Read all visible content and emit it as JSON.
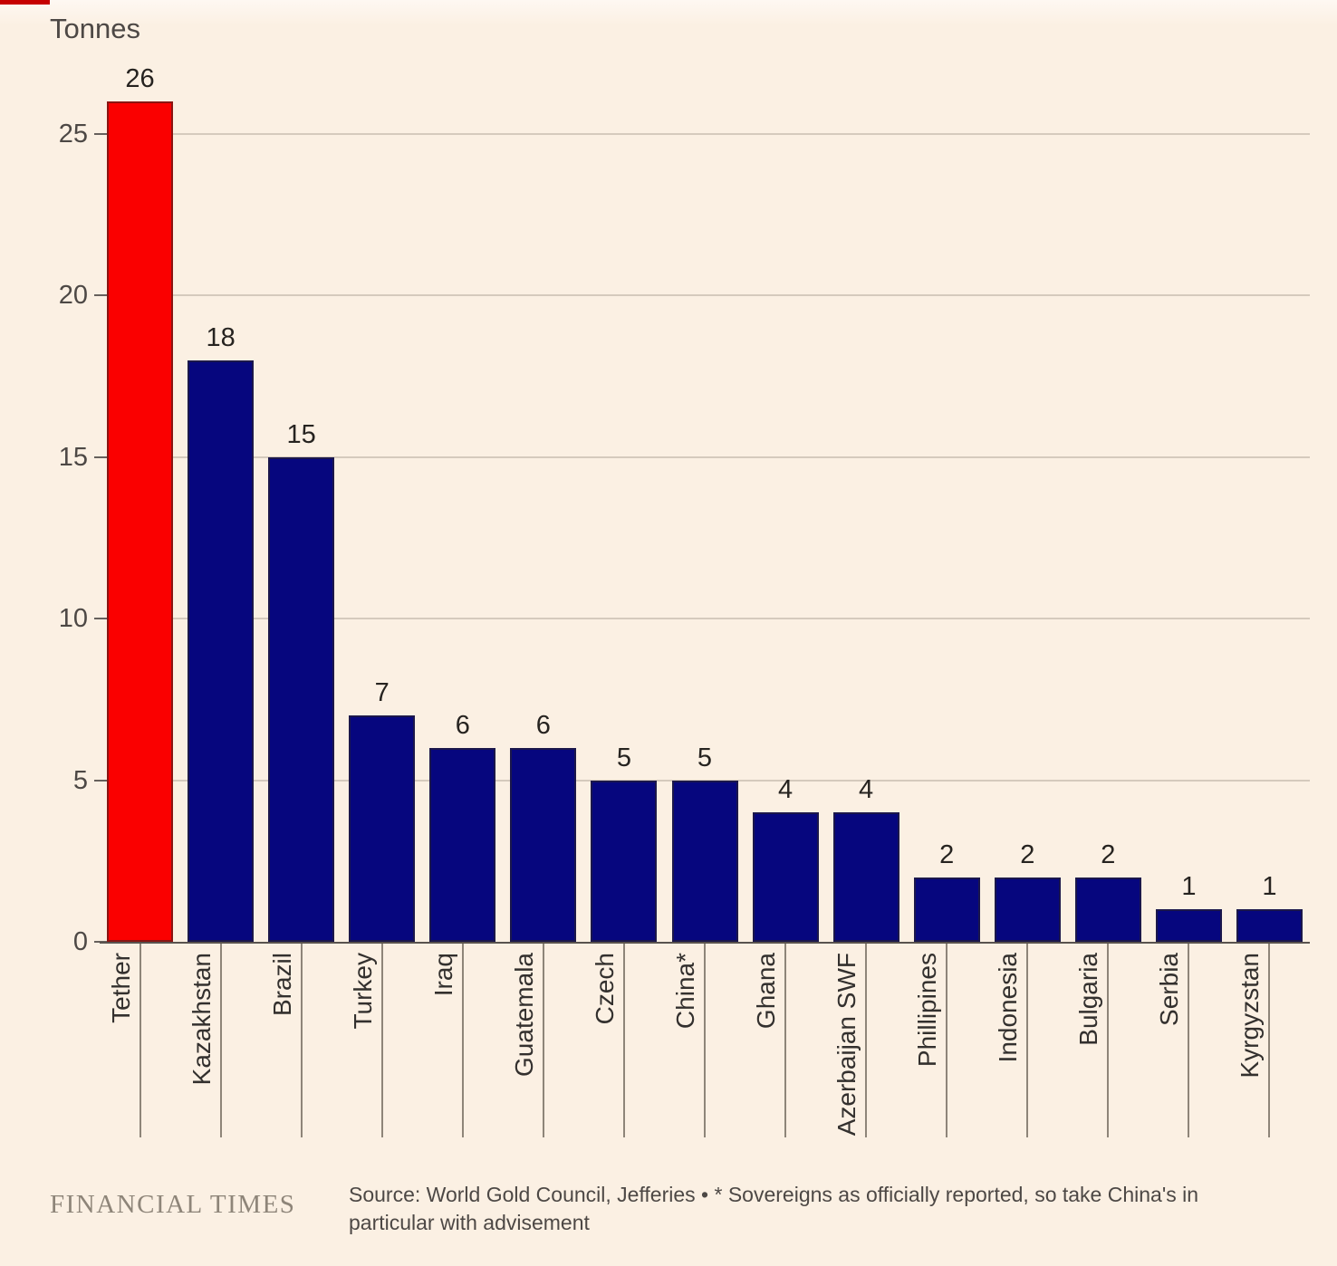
{
  "chart_data": {
    "type": "bar",
    "title": "",
    "ylabel": "Tonnes",
    "xlabel": "",
    "categories": [
      "Tether",
      "Kazakhstan",
      "Brazil",
      "Turkey",
      "Iraq",
      "Guatemala",
      "Czech",
      "China*",
      "Ghana",
      "Azerbaijan SWF",
      "Phillipines",
      "Indonesia",
      "Bulgaria",
      "Serbia",
      "Kyrgyzstan"
    ],
    "values": [
      26,
      18,
      15,
      7,
      6,
      6,
      5,
      5,
      4,
      4,
      2,
      2,
      2,
      1,
      1
    ],
    "highlight_index": 0,
    "yticks": [
      0,
      5,
      10,
      15,
      20,
      25
    ],
    "ylim": [
      0,
      26
    ],
    "grid": "horizontal",
    "legend": "none",
    "colors": {
      "bar": "#06067E",
      "highlight_bar": "#FA0000",
      "gridline": "#D5CABD",
      "axis_line": "#59534E",
      "tick": "#66605C",
      "category_tick": "#8E8579",
      "value_label": "#262320",
      "axis_label": "#4D4845",
      "background": "#FBF0E3"
    }
  },
  "decor": {
    "top_left_dash_color": "#C60000"
  },
  "footer": {
    "logo": "FINANCIAL TIMES",
    "source_text": "Source: World Gold Council, Jefferies • * Sovereigns as officially reported, so take China's in particular with advisement"
  }
}
